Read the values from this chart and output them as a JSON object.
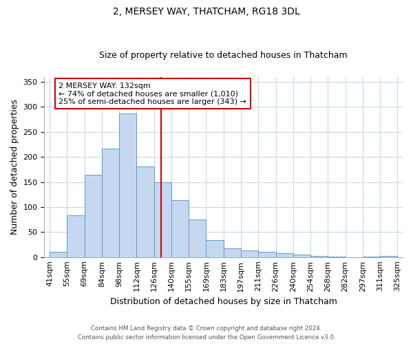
{
  "title": "2, MERSEY WAY, THATCHAM, RG18 3DL",
  "subtitle": "Size of property relative to detached houses in Thatcham",
  "xlabel": "Distribution of detached houses by size in Thatcham",
  "ylabel": "Number of detached properties",
  "bar_labels": [
    "41sqm",
    "55sqm",
    "69sqm",
    "84sqm",
    "98sqm",
    "112sqm",
    "126sqm",
    "140sqm",
    "155sqm",
    "169sqm",
    "183sqm",
    "197sqm",
    "211sqm",
    "226sqm",
    "240sqm",
    "254sqm",
    "268sqm",
    "282sqm",
    "297sqm",
    "311sqm",
    "325sqm"
  ],
  "bar_heights": [
    10,
    84,
    164,
    217,
    287,
    181,
    150,
    113,
    75,
    34,
    18,
    13,
    11,
    8,
    5,
    2,
    1,
    0,
    1,
    2
  ],
  "bar_color": "#c5d8f0",
  "bar_edge_color": "#5b9bd5",
  "vline_x_index": 6.43,
  "vline_color": "#cc0000",
  "annotation_text": "2 MERSEY WAY: 132sqm\n← 74% of detached houses are smaller (1,010)\n25% of semi-detached houses are larger (343) →",
  "annotation_box_color": "#ffffff",
  "annotation_box_edge_color": "#cc0000",
  "ylim": [
    0,
    360
  ],
  "yticks": [
    0,
    50,
    100,
    150,
    200,
    250,
    300,
    350
  ],
  "footer_line1": "Contains HM Land Registry data © Crown copyright and database right 2024.",
  "footer_line2": "Contains public sector information licensed under the Open Government Licence v3.0.",
  "background_color": "#ffffff",
  "grid_color": "#c8d8ec",
  "title_fontsize": 10,
  "subtitle_fontsize": 9,
  "annotation_fontsize": 8,
  "xlabel_fontsize": 9,
  "ylabel_fontsize": 9,
  "tick_fontsize": 8
}
